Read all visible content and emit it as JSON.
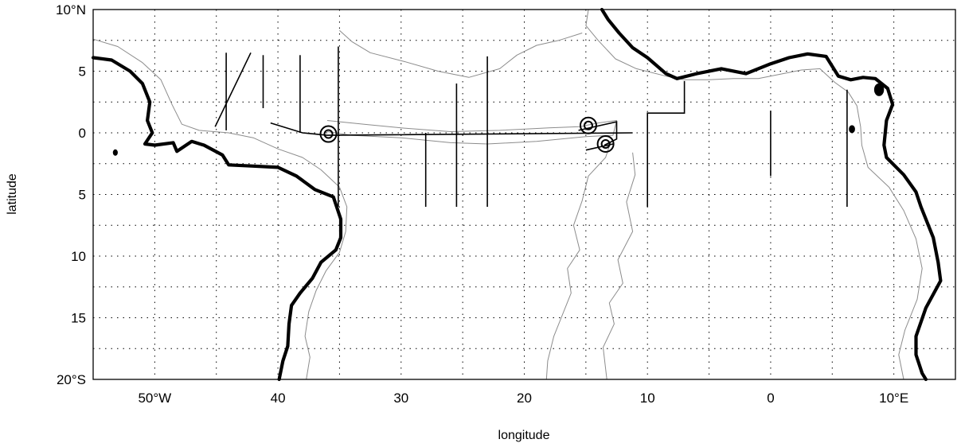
{
  "axes": {
    "xlabel": "longitude",
    "ylabel": "latitude",
    "lon_range": [
      -55,
      15
    ],
    "lat_range": [
      -20,
      10
    ],
    "x_ticks": [
      {
        "lon": -50,
        "label": "50°W"
      },
      {
        "lon": -40,
        "label": "40"
      },
      {
        "lon": -30,
        "label": "30"
      },
      {
        "lon": -20,
        "label": "20"
      },
      {
        "lon": -10,
        "label": "10"
      },
      {
        "lon": 0,
        "label": "0"
      },
      {
        "lon": 10,
        "label": "10°E"
      }
    ],
    "y_ticks": [
      {
        "lat": 10,
        "label": "10°N"
      },
      {
        "lat": 5,
        "label": "5"
      },
      {
        "lat": 0,
        "label": "0"
      },
      {
        "lat": -5,
        "label": "5"
      },
      {
        "lat": -10,
        "label": "10"
      },
      {
        "lat": -15,
        "label": "15"
      },
      {
        "lat": -20,
        "label": "20°S"
      }
    ],
    "grid_lon": [
      -50,
      -45,
      -40,
      -35,
      -30,
      -25,
      -20,
      -15,
      -10,
      -5,
      0,
      5,
      10
    ],
    "grid_lat": [
      7.5,
      5,
      2.5,
      0,
      -2.5,
      -5,
      -7.5,
      -10,
      -12.5,
      -15,
      -17.5
    ],
    "grid": "dotted"
  },
  "colors": {
    "coastline": "#000000",
    "isobath": "#8c8c8c",
    "sections": "#000000",
    "background": "#ffffff"
  },
  "coastlines": {
    "south_america": [
      [
        -55,
        6.1
      ],
      [
        -53.5,
        5.9
      ],
      [
        -52,
        5
      ],
      [
        -51,
        4
      ],
      [
        -50.4,
        2.5
      ],
      [
        -50.6,
        1
      ],
      [
        -50.2,
        0
      ],
      [
        -50.8,
        -0.9
      ],
      [
        -50,
        -1
      ],
      [
        -48.5,
        -0.8
      ],
      [
        -48.2,
        -1.5
      ],
      [
        -47,
        -0.7
      ],
      [
        -46,
        -1
      ],
      [
        -44.5,
        -1.8
      ],
      [
        -44,
        -2.6
      ],
      [
        -42,
        -2.7
      ],
      [
        -40,
        -2.8
      ],
      [
        -38.5,
        -3.5
      ],
      [
        -37,
        -4.6
      ],
      [
        -35.5,
        -5.2
      ],
      [
        -34.9,
        -7
      ],
      [
        -34.9,
        -8.5
      ],
      [
        -35.3,
        -9.5
      ],
      [
        -36.5,
        -10.5
      ],
      [
        -37.2,
        -11.8
      ],
      [
        -38.2,
        -13
      ],
      [
        -38.9,
        -14
      ],
      [
        -39.1,
        -15.5
      ],
      [
        -39.2,
        -17.3
      ],
      [
        -39.6,
        -18.5
      ],
      [
        -39.9,
        -20
      ]
    ],
    "africa": [
      [
        -13.7,
        10
      ],
      [
        -13.2,
        9.2
      ],
      [
        -12.3,
        8.1
      ],
      [
        -11.2,
        6.9
      ],
      [
        -10,
        6.1
      ],
      [
        -8.5,
        4.8
      ],
      [
        -7.6,
        4.4
      ],
      [
        -6,
        4.8
      ],
      [
        -4,
        5.2
      ],
      [
        -2,
        4.8
      ],
      [
        0,
        5.6
      ],
      [
        1.5,
        6.1
      ],
      [
        3,
        6.4
      ],
      [
        4.5,
        6.2
      ],
      [
        5.5,
        4.6
      ],
      [
        6.5,
        4.3
      ],
      [
        7.5,
        4.5
      ],
      [
        8.5,
        4.4
      ],
      [
        9.5,
        3.6
      ],
      [
        9.9,
        2.3
      ],
      [
        9.4,
        1
      ],
      [
        9.2,
        -1
      ],
      [
        9.4,
        -2
      ],
      [
        10.8,
        -3.4
      ],
      [
        11.8,
        -4.8
      ],
      [
        12.2,
        -6
      ],
      [
        13.2,
        -8.5
      ],
      [
        13.6,
        -10.5
      ],
      [
        13.8,
        -12
      ],
      [
        12.6,
        -14.2
      ],
      [
        11.8,
        -16.5
      ],
      [
        11.8,
        -18
      ],
      [
        12.3,
        -19.5
      ],
      [
        12.6,
        -20
      ]
    ]
  },
  "isobaths": {
    "sa_shelf_outer": [
      [
        -55,
        7.6
      ],
      [
        -53,
        7
      ],
      [
        -51,
        5.7
      ],
      [
        -49.5,
        4.3
      ],
      [
        -48.6,
        2.3
      ],
      [
        -47.8,
        0.7
      ],
      [
        -46.4,
        0.2
      ],
      [
        -44,
        0
      ],
      [
        -42,
        -0.4
      ],
      [
        -40,
        -1.3
      ],
      [
        -38,
        -2
      ],
      [
        -36.5,
        -3
      ],
      [
        -35,
        -4.4
      ],
      [
        -34.4,
        -6
      ],
      [
        -34.5,
        -8
      ],
      [
        -35,
        -9.7
      ],
      [
        -36.1,
        -11.2
      ],
      [
        -36.9,
        -12.8
      ],
      [
        -37.5,
        -14.5
      ],
      [
        -37.8,
        -16.5
      ],
      [
        -37.4,
        -18.2
      ],
      [
        -37.7,
        -20
      ]
    ],
    "africa_slope": [
      [
        -14.8,
        10
      ],
      [
        -15,
        8.7
      ],
      [
        -14,
        7.5
      ],
      [
        -12.6,
        6
      ],
      [
        -10.9,
        5.2
      ],
      [
        -8.5,
        4.6
      ],
      [
        -7,
        4.3
      ],
      [
        -5,
        4.3
      ],
      [
        -3,
        4.4
      ],
      [
        -1,
        4.4
      ],
      [
        1,
        4.8
      ],
      [
        2.5,
        5.1
      ],
      [
        4,
        5.2
      ],
      [
        5.2,
        4.1
      ],
      [
        6.3,
        3.3
      ],
      [
        7,
        2.2
      ],
      [
        7.3,
        0.5
      ],
      [
        7.4,
        -1
      ],
      [
        7.9,
        -2.8
      ],
      [
        9.6,
        -4.4
      ],
      [
        10.8,
        -6.3
      ],
      [
        11.8,
        -8.6
      ],
      [
        12.3,
        -11
      ],
      [
        11.9,
        -13.5
      ],
      [
        10.9,
        -16
      ],
      [
        10.4,
        -18
      ],
      [
        10.8,
        -20
      ]
    ],
    "equatorial_ridge": [
      [
        -36,
        1
      ],
      [
        -33,
        0.7
      ],
      [
        -30,
        0.4
      ],
      [
        -26,
        0.1
      ],
      [
        -22,
        0.2
      ],
      [
        -18,
        0.4
      ],
      [
        -15.5,
        0.5
      ],
      [
        -14,
        0.8
      ],
      [
        -12.5,
        1
      ],
      [
        -12.8,
        -0.2
      ],
      [
        -15,
        -0.3
      ],
      [
        -19,
        -0.7
      ],
      [
        -23,
        -0.9
      ],
      [
        -26,
        -0.8
      ],
      [
        -30,
        -0.4
      ],
      [
        -34,
        -0.2
      ],
      [
        -36,
        0.1
      ]
    ],
    "mid_atlantic_w": [
      [
        -13,
        -0.8
      ],
      [
        -13.4,
        -2
      ],
      [
        -14.8,
        -3.5
      ],
      [
        -15.3,
        -5.5
      ],
      [
        -16,
        -7.5
      ],
      [
        -15.5,
        -9.5
      ],
      [
        -16.5,
        -11
      ],
      [
        -16.2,
        -13
      ],
      [
        -17,
        -15
      ],
      [
        -17.6,
        -16.5
      ],
      [
        -18.1,
        -18.5
      ],
      [
        -18.2,
        -20
      ]
    ],
    "mid_atlantic_e": [
      [
        -11.2,
        -1.6
      ],
      [
        -11,
        -3.4
      ],
      [
        -11.7,
        -5.6
      ],
      [
        -11.2,
        -8
      ],
      [
        -12.4,
        -10.3
      ],
      [
        -12,
        -12.2
      ],
      [
        -13.1,
        -13.8
      ],
      [
        -12.7,
        -15.5
      ],
      [
        -13.6,
        -17.4
      ],
      [
        -13.3,
        -20
      ]
    ],
    "ridge_west_flank": [
      [
        -35,
        8.3
      ],
      [
        -34,
        7.4
      ],
      [
        -32.5,
        6.5
      ],
      [
        -29.8,
        5.8
      ],
      [
        -27,
        5
      ],
      [
        -24.5,
        4.5
      ],
      [
        -22,
        5.2
      ],
      [
        -20.6,
        6.3
      ],
      [
        -19,
        7.1
      ],
      [
        -17.2,
        7.5
      ],
      [
        -15.3,
        8.1
      ]
    ]
  },
  "sections": [
    [
      [
        -44.2,
        6.5
      ],
      [
        -44.2,
        0.2
      ]
    ],
    [
      [
        -42.2,
        6.5
      ],
      [
        -45.1,
        0.5
      ]
    ],
    [
      [
        -41.2,
        6.3
      ],
      [
        -41.2,
        2
      ]
    ],
    [
      [
        -38.2,
        6.3
      ],
      [
        -38.2,
        0
      ]
    ],
    [
      [
        -35.1,
        7
      ],
      [
        -35.1,
        -6
      ]
    ],
    [
      [
        -40.6,
        0.8
      ],
      [
        -38,
        0
      ],
      [
        -36,
        -0.2
      ],
      [
        -11.2,
        0
      ]
    ],
    [
      [
        -28,
        0
      ],
      [
        -28,
        -6
      ]
    ],
    [
      [
        -25.5,
        4
      ],
      [
        -25.5,
        -6
      ]
    ],
    [
      [
        -23,
        6.2
      ],
      [
        -23,
        -6
      ]
    ],
    [
      [
        -15.6,
        0.2
      ],
      [
        -12.5,
        0.9
      ],
      [
        -12.5,
        -0.5
      ],
      [
        -13.5,
        -1
      ]
    ],
    [
      [
        -12.8,
        -0.9
      ],
      [
        -15,
        -1.4
      ]
    ],
    [
      [
        -10,
        -6
      ],
      [
        -10,
        1.6
      ],
      [
        -7,
        1.6
      ],
      [
        -7,
        4.2
      ]
    ],
    [
      [
        0,
        1.8
      ],
      [
        0,
        -3.5
      ]
    ],
    [
      [
        6.2,
        3.5
      ],
      [
        6.2,
        -6
      ]
    ]
  ],
  "moorings": [
    {
      "lon": -35.9,
      "lat": -0.1
    },
    {
      "lon": -14.8,
      "lat": 0.6
    },
    {
      "lon": -13.4,
      "lat": -0.9
    }
  ],
  "islands": [
    {
      "lon": 8.8,
      "lat": 3.5,
      "r": 0.4
    },
    {
      "lon": 6.6,
      "lat": 0.3,
      "r": 0.25
    },
    {
      "lon": -53.2,
      "lat": -1.6,
      "r": 0.2
    }
  ]
}
